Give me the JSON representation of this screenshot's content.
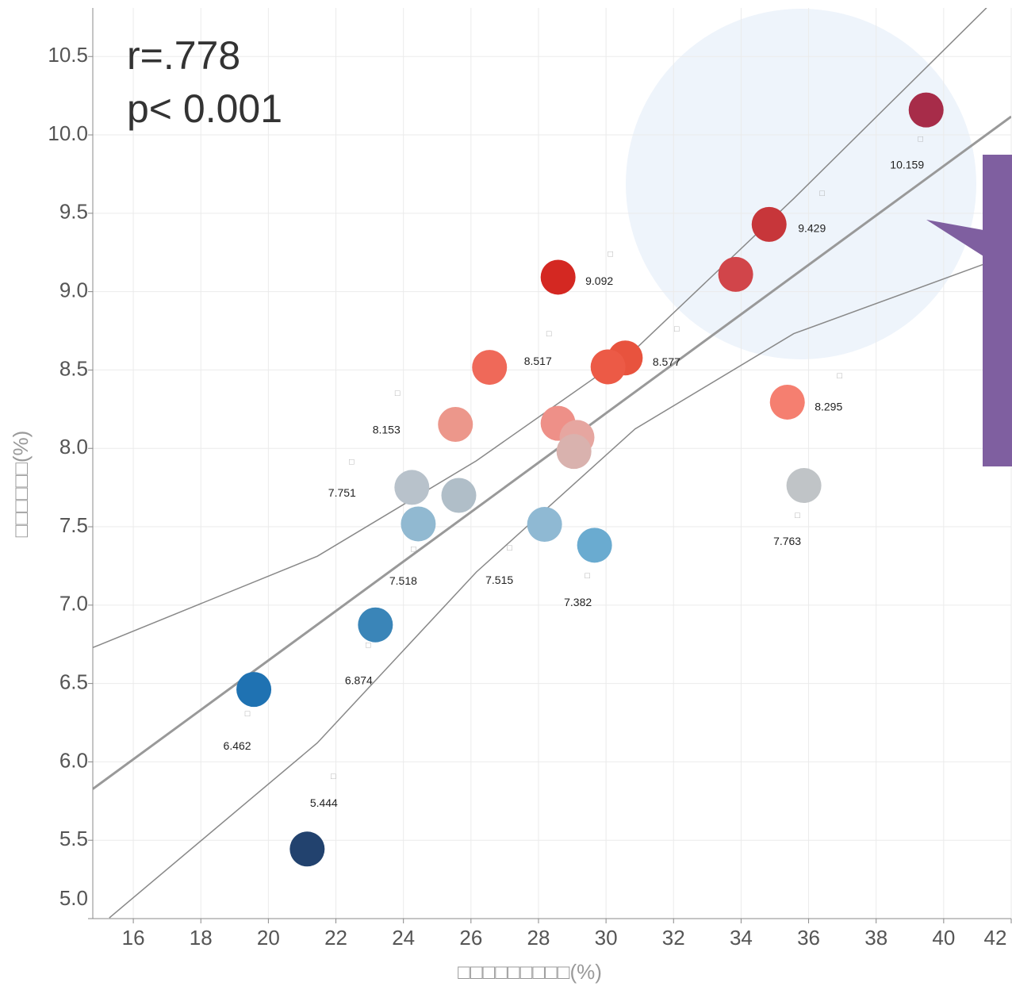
{
  "chart_data": {
    "type": "scatter",
    "x_label": "□□□□□□□□□(%)",
    "y_label": "□□□□□□(%)",
    "annotations": [
      "r=.778",
      "p< 0.001"
    ],
    "xlim": [
      14.8,
      42.0
    ],
    "ylim": [
      5.0,
      10.81
    ],
    "xticks": [
      16,
      18,
      20,
      22,
      24,
      26,
      28,
      30,
      32,
      34,
      36,
      38,
      40,
      42
    ],
    "yticks": [
      {
        "value": 5,
        "label": "5.0"
      },
      5.5,
      {
        "value": 6,
        "label": "6.0"
      },
      6.5,
      {
        "value": 7,
        "label": "7.0"
      },
      7.5,
      {
        "value": 8,
        "label": "8.0"
      },
      8.5,
      {
        "value": 9,
        "label": "9.0"
      },
      9.5,
      {
        "value": 10,
        "label": "10.0"
      },
      10.5
    ],
    "grid": true,
    "series": [
      {
        "name": null,
        "x": [
          39.48,
          34.83,
          33.84,
          28.58,
          30.57,
          30.06,
          26.55,
          25.54,
          28.58,
          29.14,
          29.05,
          24.25,
          25.64,
          24.44,
          28.18,
          29.66,
          35.86,
          35.37,
          23.17,
          19.57,
          21.15
        ],
        "values": [
          10.159,
          9.429,
          9.11,
          9.092,
          8.577,
          8.52,
          8.517,
          8.153,
          8.16,
          8.07,
          7.98,
          7.751,
          7.7,
          7.518,
          7.515,
          7.382,
          7.763,
          8.295,
          6.874,
          6.462,
          5.444
        ],
        "value_labels": [
          "10.159",
          "9.429",
          null,
          "9.092",
          "8.577",
          null,
          "8.517",
          "8.153",
          null,
          null,
          null,
          "7.751",
          null,
          "7.518",
          "7.515",
          "7.382",
          "7.763",
          "8.295",
          "6.874",
          "6.462",
          "5.444"
        ],
        "names": [
          "□",
          "□",
          null,
          "□",
          "□",
          null,
          "□",
          "□",
          null,
          null,
          null,
          "□",
          null,
          "□",
          "□",
          "□",
          "□",
          "□",
          "□",
          "□",
          "□"
        ],
        "colors": [
          "#a72c49",
          "#c7363a",
          "#d1454a",
          "#d42822",
          "#e8533e",
          "#ec5a46",
          "#ef6959",
          "#ec978b",
          "#ee9088",
          "#e6a6a0",
          "#d9b2ae",
          "#b8c2cb",
          "#b0bec8",
          "#91b9d1",
          "#8fb9d3",
          "#6aabd0",
          "#c0c4c7",
          "#f57f70",
          "#3a85b8",
          "#1f72b2",
          "#22426e"
        ]
      }
    ],
    "regression": {
      "x": [
        14.8,
        42.0
      ],
      "values": [
        5.827,
        10.117
      ]
    },
    "bands": [
      {
        "x": [
          14.8,
          21.45,
          26.16,
          30.86,
          35.56,
          41.27
        ],
        "values": [
          6.729,
          7.312,
          7.921,
          8.631,
          9.594,
          10.811
        ]
      },
      {
        "x": [
          15.29,
          21.45,
          26.16,
          30.86,
          35.56,
          42.0
        ],
        "values": [
          5.005,
          6.121,
          7.211,
          8.124,
          8.732,
          9.239
        ]
      }
    ]
  }
}
